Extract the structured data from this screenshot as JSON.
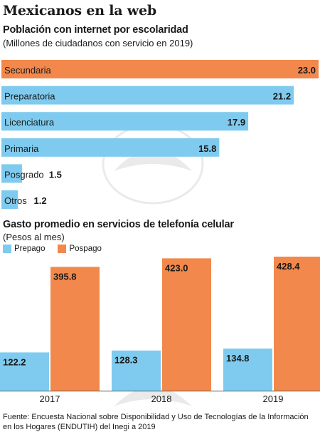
{
  "title": "Mexicanos en la web",
  "colors": {
    "blue": "#7fcbef",
    "orange": "#f2884b"
  },
  "chart_data": [
    {
      "type": "bar",
      "orientation": "horizontal",
      "title": "Población con internet por escolaridad",
      "subtitle": "(Millones de ciudadanos con servicio en 2019)",
      "categories": [
        "Secundaria",
        "Preparatoria",
        "Licenciatura",
        "Primaria",
        "Posgrado",
        "Otros"
      ],
      "values": [
        23.0,
        21.2,
        17.9,
        15.8,
        1.5,
        1.2
      ],
      "value_labels": [
        "23.0",
        "21.2",
        "17.9",
        "15.8",
        "1.5",
        "1.2"
      ],
      "highlight": "Secundaria",
      "xlim": [
        0,
        23.0
      ]
    },
    {
      "type": "bar",
      "title": "Gasto promedio en servicios de telefonía celular",
      "subtitle": "(Pesos al mes)",
      "categories": [
        "2017",
        "2018",
        "2019"
      ],
      "series": [
        {
          "name": "Prepago",
          "values": [
            122.2,
            128.3,
            134.8
          ],
          "labels": [
            "122.2",
            "128.3",
            "134.8"
          ]
        },
        {
          "name": "Pospago",
          "values": [
            395.8,
            423.0,
            428.4
          ],
          "labels": [
            "395.8",
            "423.0",
            "428.4"
          ]
        }
      ],
      "ylim": [
        0,
        428.4
      ],
      "legend_position": "top-left"
    }
  ],
  "source": "Fuente: Encuesta Nacional sobre Disponibilidad y Uso de Tecnologías de la Información en los Hogares (ENDUTIH) del Inegi a 2019"
}
